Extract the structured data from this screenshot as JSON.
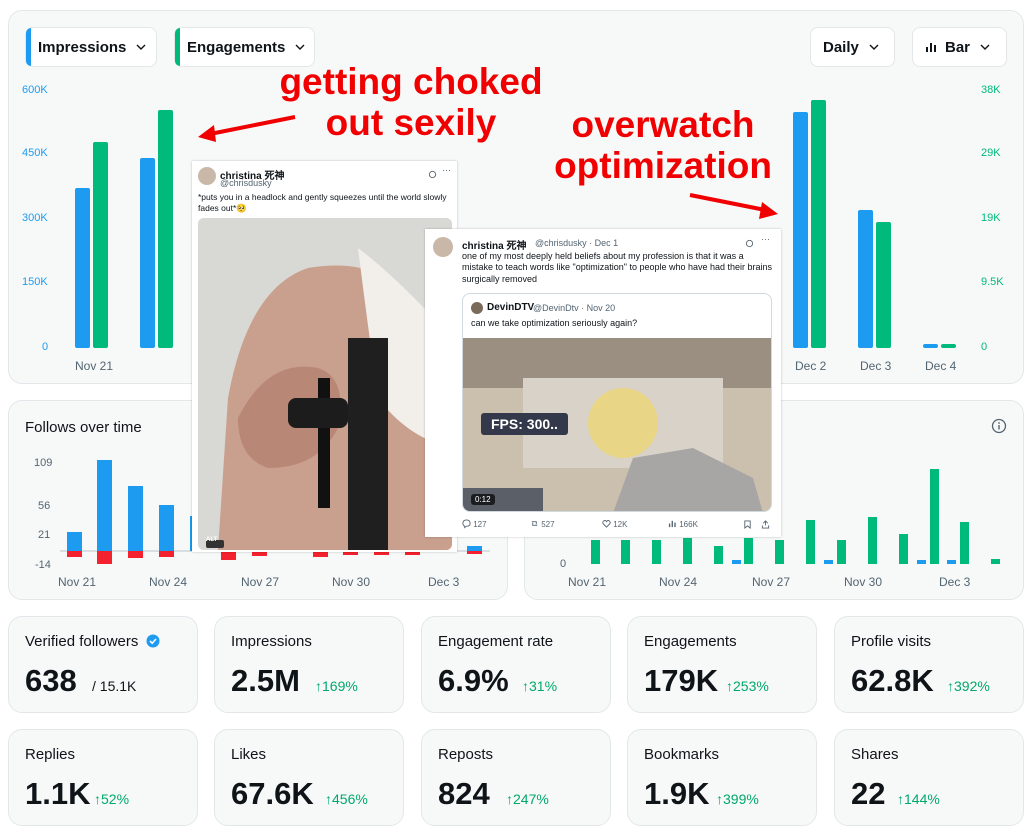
{
  "controls": {
    "metric_a": "Impressions",
    "metric_b": "Engagements",
    "interval": "Daily",
    "chart_type": "Bar",
    "color_a": "#1d9bf0",
    "color_b": "#00ba7c"
  },
  "top_chart": {
    "left_ticks": [
      "600K",
      "450K",
      "300K",
      "150K",
      "0"
    ],
    "right_ticks": [
      "38K",
      "29K",
      "19K",
      "9.5K",
      "0"
    ],
    "x_labels": [
      "Nov 21",
      "Dec 2",
      "Dec 3",
      "Dec 4"
    ]
  },
  "follows_chart": {
    "title": "Follows over time",
    "y_ticks": [
      "109",
      "56",
      "21",
      "-14"
    ],
    "x_labels": [
      "Nov 21",
      "Nov 24",
      "Nov 27",
      "Nov 30",
      "Dec 3"
    ]
  },
  "right_chart": {
    "y_ticks": [
      "0"
    ],
    "x_labels": [
      "Nov 21",
      "Nov 24",
      "Nov 27",
      "Nov 30",
      "Dec 3"
    ]
  },
  "stats": [
    {
      "title": "Verified followers",
      "value": "638",
      "sub": "/ 15.1K",
      "delta": ""
    },
    {
      "title": "Impressions",
      "value": "2.5M",
      "delta": "169%"
    },
    {
      "title": "Engagement rate",
      "value": "6.9%",
      "delta": "31%"
    },
    {
      "title": "Engagements",
      "value": "179K",
      "delta": "253%"
    },
    {
      "title": "Profile visits",
      "value": "62.8K",
      "delta": "392%"
    },
    {
      "title": "Replies",
      "value": "1.1K",
      "delta": "52%"
    },
    {
      "title": "Likes",
      "value": "67.6K",
      "delta": "456%"
    },
    {
      "title": "Reposts",
      "value": "824",
      "delta": "247%"
    },
    {
      "title": "Bookmarks",
      "value": "1.9K",
      "delta": "399%"
    },
    {
      "title": "Shares",
      "value": "22",
      "delta": "144%"
    }
  ],
  "annotations": {
    "left": "getting choked\nout sexily",
    "right": "overwatch\noptimization"
  },
  "tweet1": {
    "name": "christina 死神",
    "handle": "@chrisdusky",
    "text": "*puts you in a headlock and gently squeezes until the world slowly fades out*🥺",
    "badge": "ALT"
  },
  "tweet2": {
    "name": "christina 死神",
    "handle": "@chrisdusky · Dec 1",
    "text": "one of my most deeply held beliefs about my profession is that it was a mistake to teach words like \"optimization\" to people who have had their brains surgically removed",
    "quote_name": "DevinDTV",
    "quote_handle": "@DevinDtv · Nov 20",
    "quote_text": "can we take optimization seriously again?",
    "fps": "FPS: 300..",
    "video_time": "0:12",
    "replies": "127",
    "reposts": "527",
    "likes": "12K",
    "views": "166K"
  }
}
